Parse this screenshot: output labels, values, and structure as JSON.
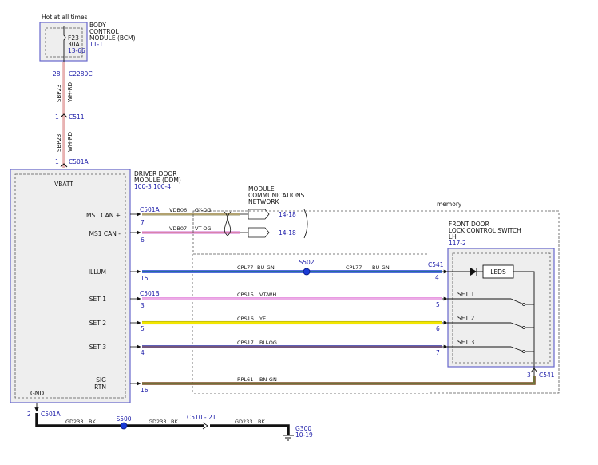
{
  "power": {
    "hot_label": "Hot at all times",
    "fuse_name": "F23",
    "fuse_rating": "30A",
    "fuse_ref": "13-66",
    "bcm_line1": "BODY",
    "bcm_line2": "CONTROL",
    "bcm_line3": "MODULE (BCM)",
    "bcm_ref": "11-11",
    "pin_bcm": "28",
    "conn_bcm": "C2280C",
    "circuit": "SBP23",
    "color": "WH-RD",
    "pin_c511": "1",
    "conn_c511": "C511",
    "pin_c501a": "1",
    "conn_c501a": "C501A"
  },
  "ddm": {
    "line1": "DRIVER DOOR",
    "line2": "MODULE (DDM)",
    "ref": "100-3 100-4",
    "vbatt": "VBATT",
    "gnd": "GND",
    "pins": {
      "ms1_can_plus": "MS1 CAN +",
      "ms1_can_minus": "MS1 CAN -",
      "illum": "ILLUM",
      "set1": "SET 1",
      "set2": "SET 2",
      "set3": "SET 3",
      "sig": "SIG",
      "rtn": "RTN"
    }
  },
  "network": {
    "line1": "MODULE",
    "line2": "COMMUNICATIONS",
    "line3": "NETWORK",
    "ref1": "14-18",
    "ref2": "14-18"
  },
  "memory_label": "memory",
  "switch": {
    "line1": "FRONT DOOR",
    "line2": "LOCK CONTROL SWITCH",
    "line3": "LH",
    "ref": "117-2",
    "leds": "LEDS",
    "set1": "SET 1",
    "set2": "SET 2",
    "set3": "SET 3"
  },
  "wires": {
    "can_plus": {
      "conn": "C501A",
      "pin": "7",
      "circuit": "VDB06",
      "color": "GY-OG"
    },
    "can_minus": {
      "pin": "6",
      "circuit": "VDB07",
      "color": "VT-OG"
    },
    "illum": {
      "pin_left": "15",
      "circuit_left": "CPL77",
      "color_left": "BU-GN",
      "splice": "S502",
      "circuit_right": "CPL77",
      "color_right": "BU-GN",
      "conn_right": "C541",
      "pin_right": "4"
    },
    "set1": {
      "conn": "C501B",
      "pin_left": "3",
      "circuit": "CPS15",
      "color": "VT-WH",
      "pin_right": "5"
    },
    "set2": {
      "pin_left": "5",
      "circuit": "CPS16",
      "color": "YE",
      "pin_right": "6"
    },
    "set3": {
      "pin_left": "4",
      "circuit": "CPS17",
      "color": "BU-OG",
      "pin_right": "7"
    },
    "sigrtn": {
      "pin_left": "16",
      "circuit": "RPL61",
      "color": "BN-GN",
      "pin_right": "3",
      "conn_right": "C541"
    }
  },
  "ground": {
    "pin": "2",
    "conn": "C501A",
    "seg1_circuit": "GD233",
    "seg1_color": "BK",
    "splice": "S500",
    "seg2_circuit": "GD233",
    "seg2_color": "BK",
    "inline_conn": "C510 - 21",
    "seg3_circuit": "GD233",
    "seg3_color": "BK",
    "ground_name": "G300",
    "ground_ref": "10-19"
  },
  "colors": {
    "blue_label": "#1a1aa8",
    "module_box": "#6666cc",
    "module_fill": "#eeeeee",
    "illum_wire": "#1a3bd6",
    "set1_wire": "#e07ad8",
    "set2_wire": "#f2e600",
    "set3_wire": "#2a2aa0",
    "sig_wire": "#7a4a20",
    "can_plus_wire": "#9a9a70",
    "can_minus_wire": "#cc66cc",
    "power_wire": "#d98080"
  }
}
